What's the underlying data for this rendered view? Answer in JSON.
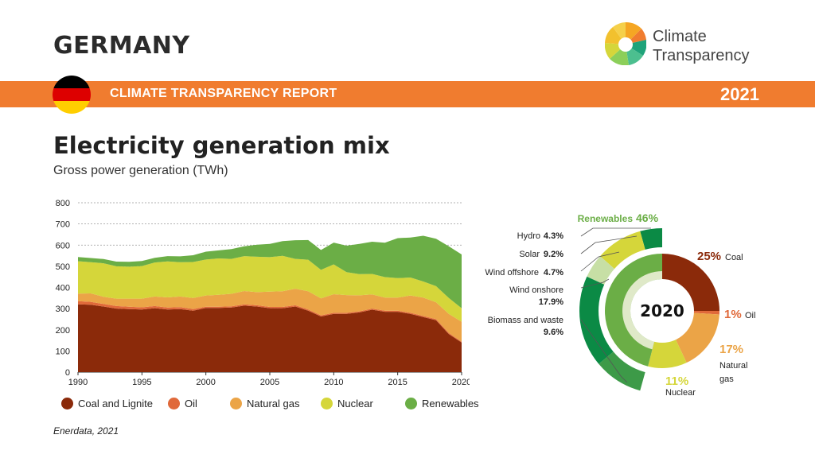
{
  "header": {
    "country": "GERMANY",
    "logo_line1": "Climate",
    "logo_line2": "Transparency",
    "report_title": "CLIMATE TRANSPARENCY REPORT",
    "year": "2021"
  },
  "flag_colors": [
    "#000000",
    "#dd0000",
    "#ffce00"
  ],
  "title": "Electricity generation mix",
  "subtitle": "Gross power generation (TWh)",
  "source": "Enerdata, 2021",
  "colors": {
    "coal": "#8b2a0a",
    "oil": "#e0693a",
    "gas": "#eba447",
    "nuclear": "#d5d63a",
    "renewables": "#6bae46",
    "renew_dark": "#0b8a45",
    "renew_light": "#c7dfa5",
    "renew_mid": "#3d9a48",
    "inner_ring": "#dfe9c8"
  },
  "chart_data": [
    {
      "type": "area",
      "stacked": true,
      "x": [
        1990,
        1991,
        1992,
        1993,
        1994,
        1995,
        1996,
        1997,
        1998,
        1999,
        2000,
        2001,
        2002,
        2003,
        2004,
        2005,
        2006,
        2007,
        2008,
        2009,
        2010,
        2011,
        2012,
        2013,
        2014,
        2015,
        2016,
        2017,
        2018,
        2019,
        2020
      ],
      "ylim": [
        0,
        800
      ],
      "yticks": [
        0,
        100,
        200,
        300,
        400,
        500,
        600,
        700,
        800
      ],
      "xticks": [
        1990,
        1995,
        2000,
        2005,
        2010,
        2015,
        2020
      ],
      "series": [
        {
          "name": "Coal and Lignite",
          "key": "coal",
          "values": [
            320,
            318,
            310,
            300,
            298,
            296,
            302,
            296,
            298,
            290,
            303,
            303,
            305,
            314,
            310,
            302,
            302,
            310,
            290,
            263,
            275,
            275,
            282,
            295,
            285,
            285,
            275,
            260,
            245,
            180,
            140
          ]
        },
        {
          "name": "Oil",
          "key": "oil",
          "values": [
            15,
            14,
            12,
            12,
            11,
            10,
            10,
            9,
            9,
            8,
            6,
            6,
            6,
            6,
            6,
            6,
            6,
            6,
            6,
            5,
            5,
            5,
            5,
            5,
            5,
            5,
            5,
            5,
            5,
            5,
            4
          ]
        },
        {
          "name": "Natural gas",
          "key": "gas",
          "values": [
            36,
            40,
            34,
            35,
            38,
            41,
            45,
            48,
            50,
            52,
            53,
            56,
            59,
            63,
            62,
            72,
            74,
            78,
            86,
            80,
            88,
            84,
            76,
            67,
            62,
            62,
            82,
            87,
            80,
            90,
            94
          ]
        },
        {
          "name": "Nuclear",
          "key": "nuclear",
          "values": [
            153,
            147,
            158,
            153,
            151,
            154,
            161,
            170,
            162,
            170,
            170,
            172,
            165,
            165,
            167,
            163,
            167,
            141,
            149,
            135,
            141,
            108,
            100,
            97,
            97,
            92,
            85,
            76,
            76,
            75,
            64
          ]
        },
        {
          "name": "Renewables",
          "key": "renewables",
          "values": [
            20,
            20,
            20,
            22,
            23,
            24,
            22,
            25,
            28,
            32,
            37,
            38,
            46,
            46,
            57,
            63,
            70,
            88,
            93,
            94,
            103,
            125,
            143,
            152,
            162,
            189,
            189,
            216,
            224,
            244,
            254
          ]
        }
      ]
    },
    {
      "type": "pie",
      "center_label": "2020",
      "inner": [
        {
          "name": "Coal",
          "pct": "25%",
          "value": 25
        },
        {
          "name": "Oil",
          "pct": "1%",
          "value": 1
        },
        {
          "name": "Natural gas",
          "pct": "17%",
          "value": 17
        },
        {
          "name": "Nuclear",
          "pct": "11%",
          "value": 11
        },
        {
          "name": "Renewables",
          "pct": "46%",
          "value": 46
        }
      ],
      "renewables_breakdown": [
        {
          "name": "Hydro",
          "value": 4.3
        },
        {
          "name": "Solar",
          "value": 9.2
        },
        {
          "name": "Wind offshore",
          "value": 4.7
        },
        {
          "name": "Wind onshore",
          "value": 17.9
        },
        {
          "name": "Biomass and waste",
          "value": 9.6
        }
      ],
      "label_texts": {
        "renewables": "Renewables",
        "renewables_pct": "46%",
        "hydro": "Hydro",
        "hydro_pct": "4.3%",
        "solar": "Solar",
        "solar_pct": "9.2%",
        "wind_off": "Wind offshore",
        "wind_off_pct": "4.7%",
        "wind_on": "Wind onshore",
        "wind_on_pct": "17.9%",
        "biomass": "Biomass and waste",
        "biomass_pct": "9.6%",
        "coal_pct": "25%",
        "coal": "Coal",
        "oil_pct": "1%",
        "oil": "Oil",
        "gas_pct": "17%",
        "gas_1": "Natural",
        "gas_2": "gas",
        "nuclear_pct": "11%",
        "nuclear": "Nuclear"
      }
    }
  ]
}
